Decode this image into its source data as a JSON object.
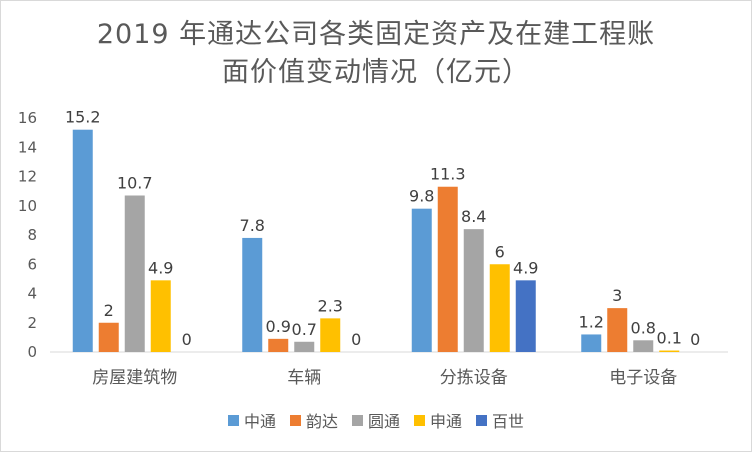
{
  "chart_data": {
    "type": "bar",
    "title": "2019 年通达公司各类固定资产及在建工程账面价值变动情况（亿元）",
    "title_line1": "2019 年通达公司各类固定资产及在建工程账",
    "title_line2": "面价值变动情况（亿元）",
    "xlabel": "",
    "ylabel": "",
    "categories": [
      "房屋建筑物",
      "车辆",
      "分拣设备",
      "电子设备"
    ],
    "series": [
      {
        "name": "中通",
        "color": "#5b9bd5",
        "values": [
          15.2,
          7.8,
          9.8,
          1.2
        ]
      },
      {
        "name": "韵达",
        "color": "#ed7d31",
        "values": [
          2,
          0.9,
          11.3,
          3
        ]
      },
      {
        "name": "圆通",
        "color": "#a5a5a5",
        "values": [
          10.7,
          0.7,
          8.4,
          0.8
        ]
      },
      {
        "name": "申通",
        "color": "#ffc000",
        "values": [
          4.9,
          2.3,
          6,
          0.1
        ]
      },
      {
        "name": "百世",
        "color": "#4472c4",
        "values": [
          0,
          0,
          4.9,
          0
        ]
      }
    ],
    "ylim": [
      0,
      16
    ],
    "yticks": [
      0,
      2,
      4,
      6,
      8,
      10,
      12,
      14,
      16
    ],
    "grid": false,
    "legend": "bottom"
  }
}
